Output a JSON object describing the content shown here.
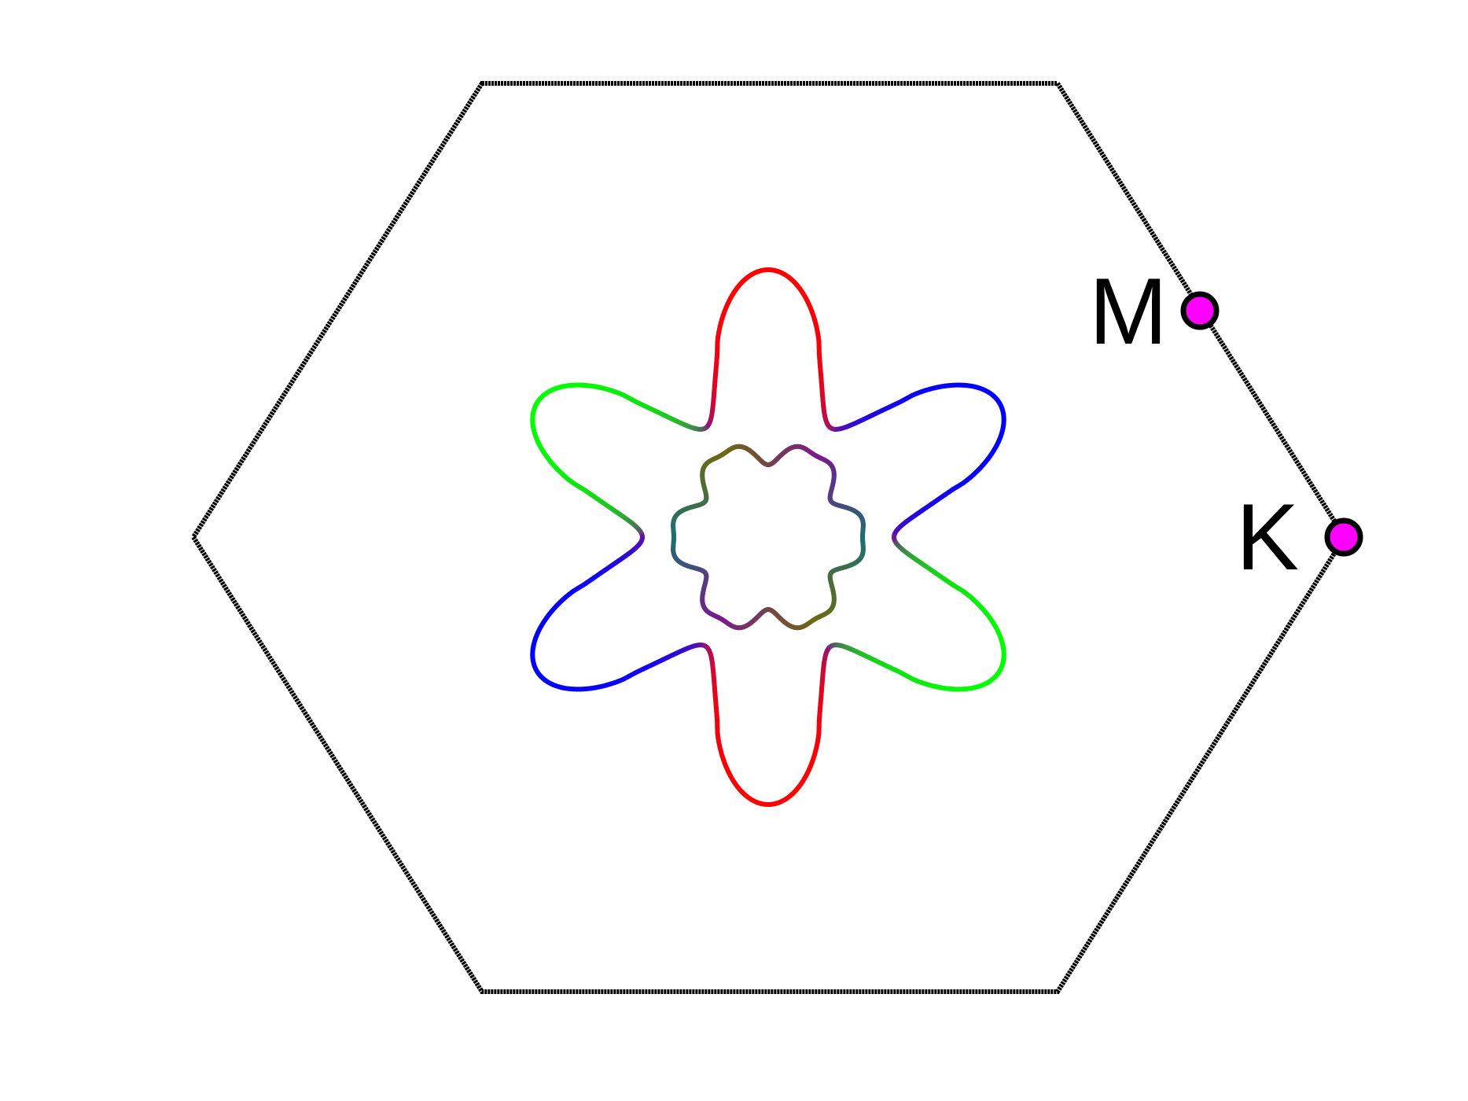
{
  "diagram": {
    "points": [
      {
        "id": "M",
        "label": "M"
      },
      {
        "id": "K",
        "label": "K"
      }
    ],
    "colors": {
      "boundary": "#000000",
      "point_fill": "#ff00ff",
      "point_stroke": "#000000",
      "red": "#ff0000",
      "green": "#00ff00",
      "blue": "#0000ff",
      "purple": "#7a1a8c",
      "olive": "#6d6a12",
      "teal": "#1f6f6f"
    }
  }
}
